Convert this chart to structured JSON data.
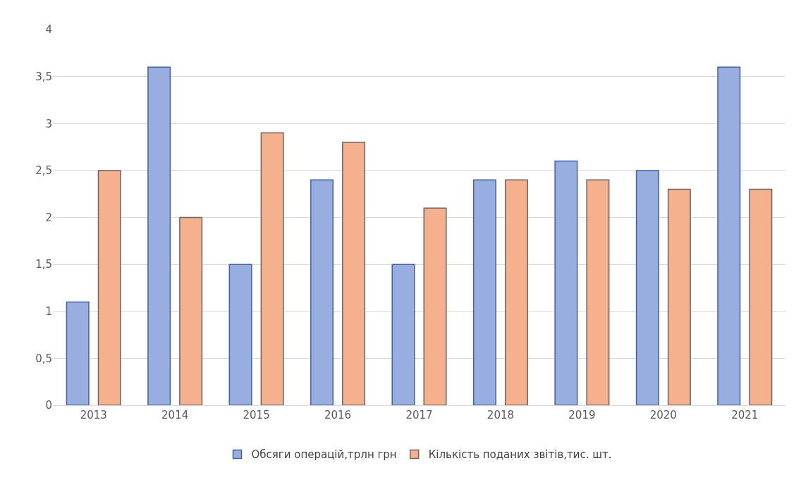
{
  "chart_data": {
    "type": "bar",
    "categories": [
      "2013",
      "2014",
      "2015",
      "2016",
      "2017",
      "2018",
      "2019",
      "2020",
      "2021"
    ],
    "series": [
      {
        "name": "Обсяги операцій,трлн грн",
        "color": "#98aee0",
        "values": [
          1.1,
          3.6,
          1.5,
          2.4,
          1.5,
          2.4,
          2.6,
          2.5,
          3.6
        ]
      },
      {
        "name": "Кількість поданих звітів,тис. шт.",
        "color": "#f5b08e",
        "values": [
          2.5,
          2.0,
          2.9,
          2.8,
          2.1,
          2.4,
          2.4,
          2.3,
          2.3
        ]
      }
    ],
    "ylim": [
      0,
      4
    ],
    "yticks": [
      0,
      {
        "value": 0.5,
        "label": "0,5"
      },
      1,
      {
        "value": 1.5,
        "label": "1,5"
      },
      2,
      {
        "value": 2.5,
        "label": "2,5"
      },
      3,
      {
        "value": 3.5,
        "label": "3,5"
      },
      4
    ],
    "grid": "y",
    "legend": "bottom"
  }
}
